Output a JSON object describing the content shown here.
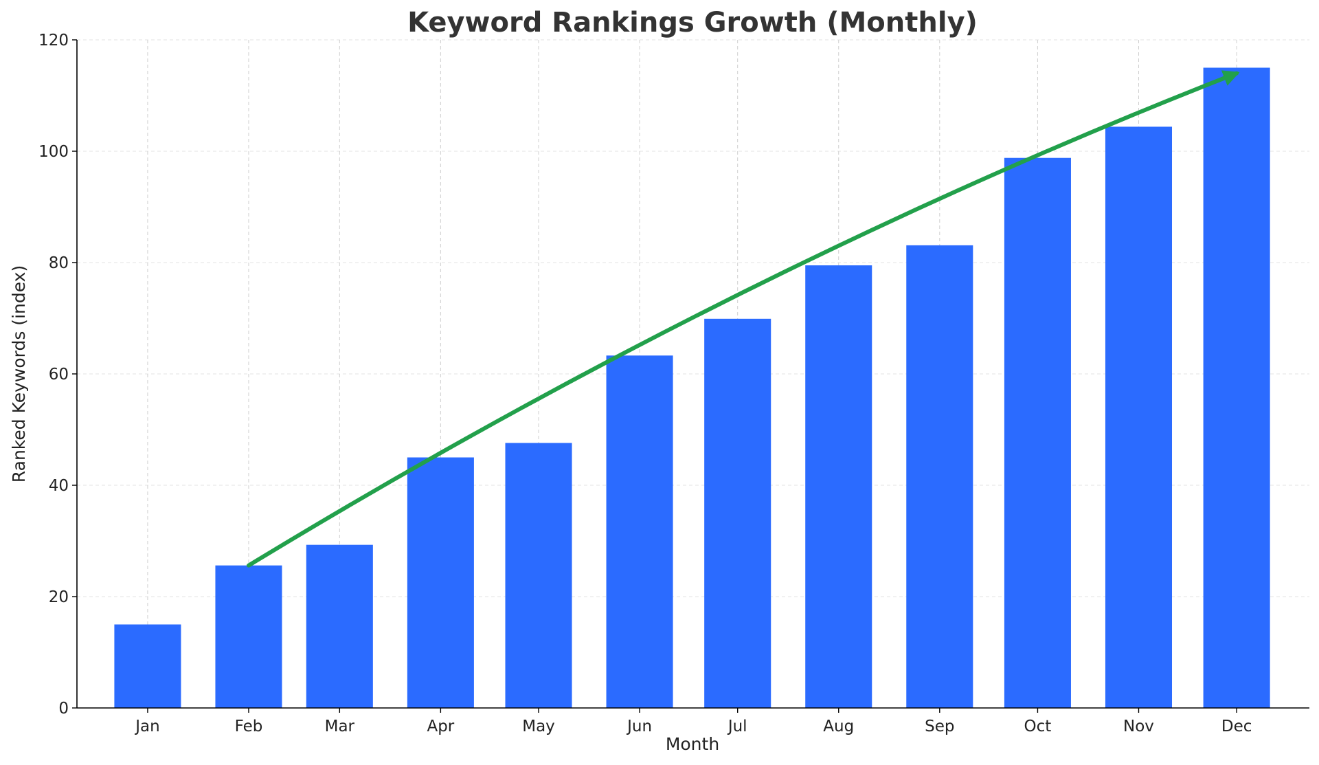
{
  "chart_data": {
    "type": "bar",
    "title": "Keyword Rankings Growth (Monthly)",
    "xlabel": "Month",
    "ylabel": "Ranked Keywords (index)",
    "categories": [
      "Jan",
      "Feb",
      "Mar",
      "Apr",
      "May",
      "Jun",
      "Jul",
      "Aug",
      "Sep",
      "Oct",
      "Nov",
      "Dec"
    ],
    "x_positions": [
      1,
      2,
      2.9,
      3.9,
      4.87,
      5.87,
      6.84,
      7.84,
      8.84,
      9.81,
      10.81,
      11.78
    ],
    "values": [
      15,
      25.6,
      29.3,
      45,
      47.6,
      63.3,
      69.9,
      79.5,
      83.1,
      98.8,
      104.4,
      115
    ],
    "ylim": [
      0,
      120
    ],
    "yticks": [
      0,
      20,
      40,
      60,
      80,
      100,
      120
    ],
    "grid": true,
    "bar_color": "#2b6bff",
    "trend_color": "#22a04b",
    "annotation": {
      "type": "curved-arrow",
      "from": {
        "x": 2,
        "y": 25.6
      },
      "control": {
        "x": 6.84,
        "y": 79
      },
      "to": {
        "x": 11.78,
        "y": 114
      }
    }
  }
}
